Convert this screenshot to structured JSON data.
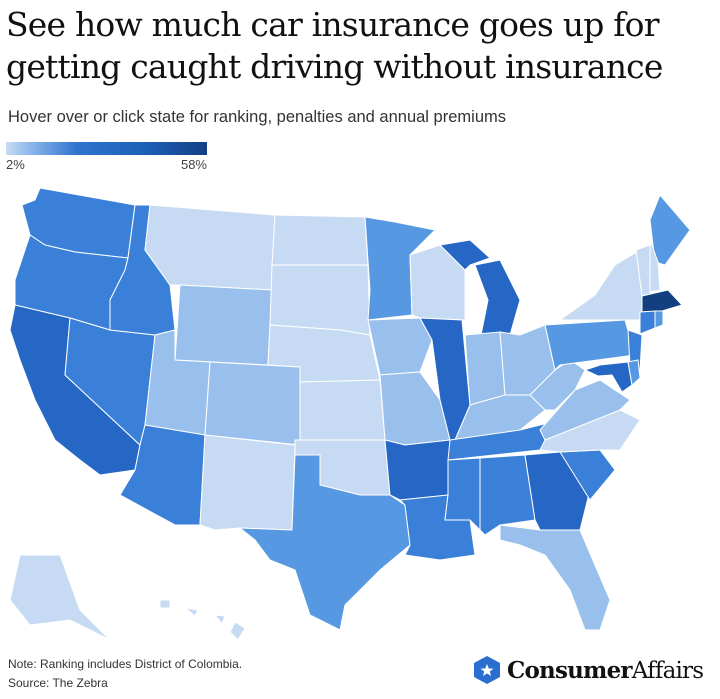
{
  "header": {
    "title_line1": "See how much car insurance goes up for",
    "title_line2": "getting caught driving without insurance",
    "subtitle": "Hover over or click state for ranking, penalties and annual premiums"
  },
  "legend": {
    "min_label": "2%",
    "max_label": "58%"
  },
  "colors": {
    "1": "#c6dbf3",
    "2": "#99c0ec",
    "3": "#5798e2",
    "4": "#3a80d8",
    "5": "#2666c4",
    "6": "#113f80"
  },
  "chart_data": {
    "type": "choropleth",
    "metric": "Car insurance increase for driving without insurance",
    "range": [
      2,
      58
    ],
    "state_shade_levels": {
      "WA": 4,
      "OR": 4,
      "CA": 5,
      "NV": 4,
      "ID": 4,
      "MT": 1,
      "WY": 2,
      "UT": 2,
      "AZ": 4,
      "CO": 2,
      "NM": 1,
      "ND": 1,
      "SD": 1,
      "NE": 1,
      "KS": 1,
      "OK": 1,
      "TX": 3,
      "MN": 3,
      "IA": 2,
      "MO": 2,
      "AR": 5,
      "LA": 4,
      "WI": 1,
      "IL": 5,
      "MI": 5,
      "IN": 2,
      "OH": 2,
      "KY": 2,
      "TN": 4,
      "MS": 4,
      "AL": 4,
      "GA": 5,
      "FL": 2,
      "SC": 4,
      "NC": 1,
      "VA": 2,
      "WV": 2,
      "PA": 3,
      "NY": 1,
      "NJ": 4,
      "MD": 5,
      "DE": 3,
      "ME": 3,
      "NH": 1,
      "VT": 1,
      "MA": 6,
      "CT": 4,
      "RI": 3,
      "AK": 1,
      "HI": 1
    }
  },
  "footer": {
    "note": "Note: Ranking includes District of Colombia.",
    "source": "Source: The Zebra",
    "logo_bold": "Consumer",
    "logo_light": "Affairs"
  }
}
